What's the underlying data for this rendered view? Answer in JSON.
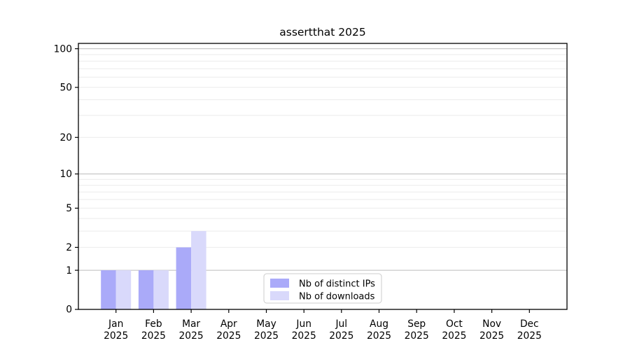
{
  "figure": {
    "title": "assertthat 2025"
  },
  "colors": {
    "distinct_ips_bar": "#aaaaf9",
    "downloads_bar": "#d9d9fb",
    "grid_major": "#bcbcbc",
    "grid_minor": "#ebebeb",
    "axis": "#000000",
    "legend_border": "#cccccc",
    "legend_bg": "#ffffff",
    "text": "#000000"
  },
  "chart_data": {
    "type": "bar",
    "title": "assertthat 2025",
    "categories": [
      "Jan",
      "Feb",
      "Mar",
      "Apr",
      "May",
      "Jun",
      "Jul",
      "Aug",
      "Sep",
      "Oct",
      "Nov",
      "Dec"
    ],
    "year_label": "2025",
    "series": [
      {
        "name": "Nb of distinct IPs",
        "color_key": "distinct_ips_bar",
        "values": [
          1,
          1,
          2,
          0,
          0,
          0,
          0,
          0,
          0,
          0,
          0,
          0
        ]
      },
      {
        "name": "Nb of downloads",
        "color_key": "downloads_bar",
        "values": [
          1,
          1,
          3,
          0,
          0,
          0,
          0,
          0,
          0,
          0,
          0,
          0
        ]
      }
    ],
    "xlabel": "",
    "ylabel": "",
    "yscale": "log1p",
    "yticks": [
      0,
      1,
      2,
      5,
      10,
      20,
      50,
      100
    ],
    "major_grid_values": [
      1,
      10,
      100
    ],
    "minor_grid_values": [
      2,
      3,
      4,
      5,
      6,
      7,
      8,
      9,
      20,
      30,
      40,
      50,
      60,
      70,
      80,
      90
    ],
    "ylim": [
      0,
      110
    ],
    "grid": true,
    "legend_position": "lower center"
  }
}
